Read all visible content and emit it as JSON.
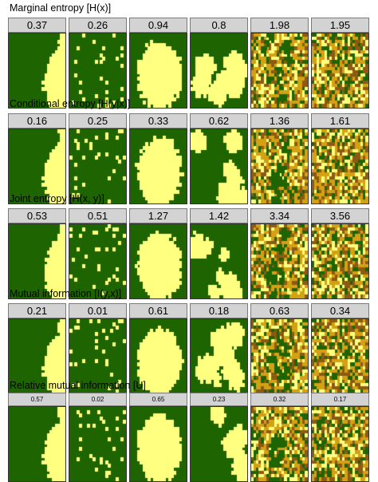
{
  "colors": {
    "forest": "#1e6400",
    "yellow": "#ffff80",
    "tan": "#d4a014",
    "brown": "#8b5a14",
    "strip_bg": "#d3d3d3"
  },
  "sections": [
    {
      "title": "Marginal entropy [H(x)]",
      "values": [
        "0.37",
        "0.26",
        "0.94",
        "0.8",
        "1.98",
        "1.95"
      ]
    },
    {
      "title": "Conditional entropy [H(y|x)]",
      "values": [
        "0.16",
        "0.25",
        "0.33",
        "0.62",
        "1.36",
        "1.61"
      ]
    },
    {
      "title": "Joint entropy [H(x, y)]",
      "values": [
        "0.53",
        "0.51",
        "1.27",
        "1.42",
        "3.34",
        "3.56"
      ]
    },
    {
      "title": "Mutual information [I(y,x)]",
      "values": [
        "0.21",
        "0.01",
        "0.61",
        "0.18",
        "0.63",
        "0.34"
      ]
    },
    {
      "title": "Relative mutual information [U]",
      "values": [
        "0.57",
        "0.02",
        "0.65",
        "0.23",
        "0.32",
        "0.17"
      ]
    }
  ]
}
